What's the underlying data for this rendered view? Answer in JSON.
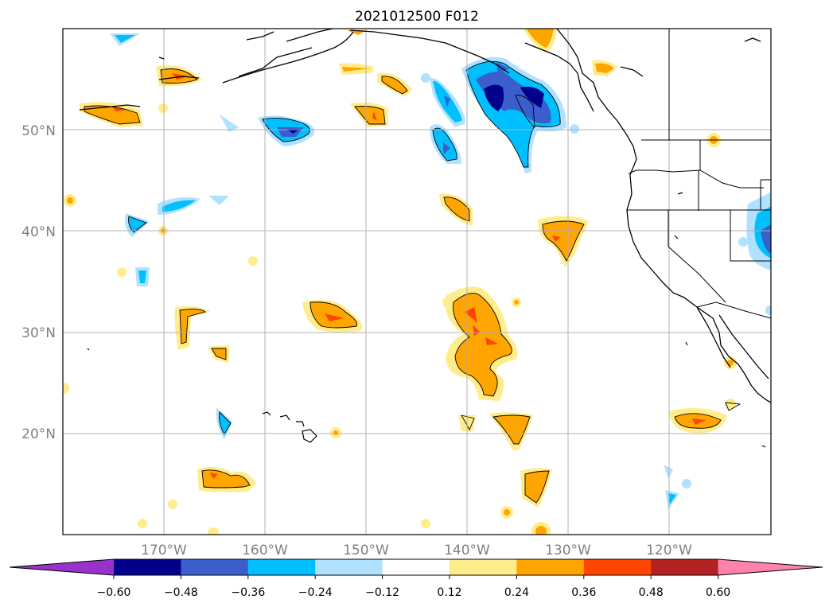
{
  "title": "2021012500 F012",
  "map": {
    "lon_range": [
      -180,
      -110
    ],
    "lat_range": [
      10,
      60
    ],
    "gridlines": true,
    "lon_labels": [
      "170°W",
      "160°W",
      "150°W",
      "140°W",
      "130°W",
      "120°W"
    ],
    "lat_labels": [
      "50°N",
      "40°N",
      "30°N",
      "20°N"
    ]
  },
  "colorbar": {
    "colors": [
      "#9932cc",
      "#00008b",
      "#3a5fcd",
      "#00bfff",
      "#b0e2ff",
      "#ffffff",
      "#ffec8b",
      "#ffa500",
      "#ff4500",
      "#b22222",
      "#ff82ab"
    ],
    "tick_labels": [
      "−0.60",
      "−0.48",
      "−0.36",
      "−0.24",
      "−0.12",
      "0.12",
      "0.24",
      "0.36",
      "0.48",
      "0.60"
    ],
    "extend": "both"
  }
}
